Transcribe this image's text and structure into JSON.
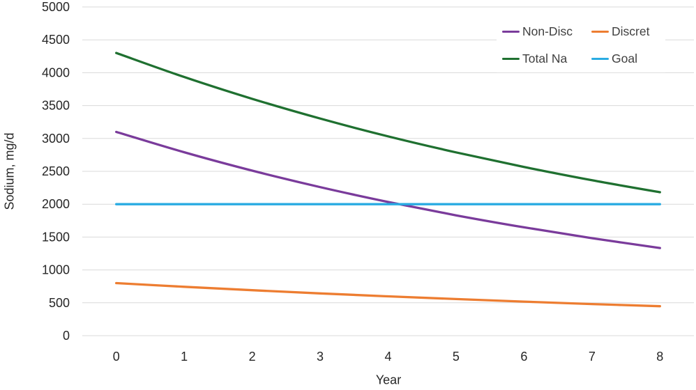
{
  "chart_data": {
    "type": "line",
    "title": "",
    "xlabel": "Year",
    "ylabel": "Sodium, mg/d",
    "x": [
      0,
      1,
      2,
      3,
      4,
      5,
      6,
      7,
      8
    ],
    "xticks": [
      "0",
      "1",
      "2",
      "3",
      "4",
      "5",
      "6",
      "7",
      "8"
    ],
    "yticks": [
      0,
      500,
      1000,
      1500,
      2000,
      2500,
      3000,
      3500,
      4000,
      4500,
      5000
    ],
    "ylim": [
      0,
      5000
    ],
    "grid": true,
    "legend_position": "top-right-inside",
    "series": [
      {
        "name": "Non-Disc",
        "color": "#7A3B9B",
        "values": [
          3100,
          2790,
          2511,
          2260,
          2034,
          1831,
          1648,
          1483,
          1334
        ]
      },
      {
        "name": "Discret",
        "color": "#ED7D31",
        "values": [
          800,
          744,
          692,
          643,
          598,
          557,
          518,
          481,
          448
        ]
      },
      {
        "name": "Total Na",
        "color": "#1F7030",
        "values": [
          4300,
          3934,
          3603,
          3303,
          3032,
          2788,
          2566,
          2364,
          2182
        ]
      },
      {
        "name": "Goal",
        "color": "#29ABE2",
        "values": [
          2000,
          2000,
          2000,
          2000,
          2000,
          2000,
          2000,
          2000,
          2000
        ]
      }
    ],
    "colors": {
      "gridline": "#D9D9D9",
      "tick_text": "#262626",
      "legend_text": "#404040",
      "background": "#FFFFFF"
    }
  }
}
